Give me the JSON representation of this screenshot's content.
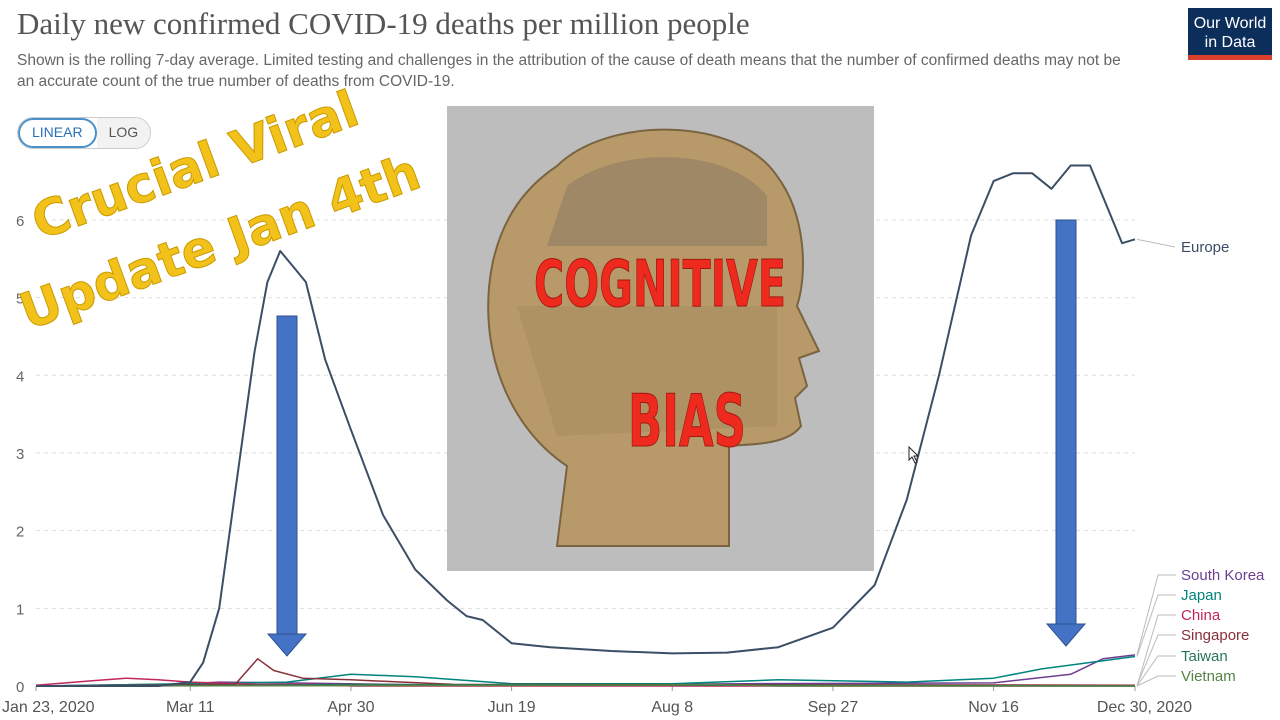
{
  "header": {
    "title": "Daily new confirmed COVID-19 deaths per million people",
    "subtitle": "Shown is the rolling 7-day average. Limited testing and challenges in the attribution of the cause of death means that the number of confirmed deaths may not be an accurate count of the true number of deaths from COVID-19.",
    "logo_line1": "Our World",
    "logo_line2": "in Data"
  },
  "scale_toggle": {
    "linear_label": "LINEAR",
    "log_label": "LOG",
    "selected": "LINEAR"
  },
  "overlay": {
    "line1": "Crucial Viral",
    "line2": "Update Jan 4th",
    "image_big_word1": "COGNITIVE",
    "image_big_word2": "BIAS",
    "arrow_color": "#4472c4"
  },
  "chart_data": {
    "type": "line",
    "title": "Daily new confirmed COVID-19 deaths per million people",
    "x_start": "Jan 23, 2020",
    "x_end": "Dec 30, 2020",
    "x_ticks": [
      "Jan 23, 2020",
      "Mar 11",
      "Apr 30",
      "Jun 19",
      "Aug 8",
      "Sep 27",
      "Nov 16",
      "Dec 30, 2020"
    ],
    "y_ticks": [
      0,
      1,
      2,
      3,
      4,
      5,
      6
    ],
    "ylim": [
      0,
      6.9
    ],
    "grid": true,
    "legend": "right-of-lines",
    "series": [
      {
        "name": "Europe",
        "color": "#3c4e66",
        "points": [
          [
            "Jan 23, 2020",
            0
          ],
          [
            "Mar 1",
            0.0
          ],
          [
            "Mar 11",
            0.05
          ],
          [
            "Mar 15",
            0.3
          ],
          [
            "Mar 20",
            1.0
          ],
          [
            "Mar 25",
            2.5
          ],
          [
            "Mar 31",
            4.3
          ],
          [
            "Apr 4",
            5.2
          ],
          [
            "Apr 8",
            5.6
          ],
          [
            "Apr 12",
            5.4
          ],
          [
            "Apr 16",
            5.2
          ],
          [
            "Apr 22",
            4.2
          ],
          [
            "Apr 30",
            3.3
          ],
          [
            "May 10",
            2.2
          ],
          [
            "May 20",
            1.5
          ],
          [
            "May 30",
            1.1
          ],
          [
            "Jun 5",
            0.9
          ],
          [
            "Jun 10",
            0.85
          ],
          [
            "Jun 19",
            0.55
          ],
          [
            "Jul 1",
            0.5
          ],
          [
            "Jul 20",
            0.45
          ],
          [
            "Aug 8",
            0.42
          ],
          [
            "Aug 25",
            0.43
          ],
          [
            "Sep 10",
            0.5
          ],
          [
            "Sep 27",
            0.75
          ],
          [
            "Oct 10",
            1.3
          ],
          [
            "Oct 20",
            2.4
          ],
          [
            "Oct 30",
            4.0
          ],
          [
            "Nov 9",
            5.8
          ],
          [
            "Nov 16",
            6.5
          ],
          [
            "Nov 22",
            6.6
          ],
          [
            "Nov 28",
            6.6
          ],
          [
            "Dec 4",
            6.4
          ],
          [
            "Dec 10",
            6.7
          ],
          [
            "Dec 16",
            6.7
          ],
          [
            "Dec 22",
            6.1
          ],
          [
            "Dec 26",
            5.7
          ],
          [
            "Dec 30, 2020",
            5.75
          ]
        ]
      },
      {
        "name": "South Korea",
        "color": "#6d3e91",
        "points": [
          [
            "Jan 23, 2020",
            0
          ],
          [
            "Mar 5",
            0.02
          ],
          [
            "Mar 20",
            0.05
          ],
          [
            "Apr 10",
            0.04
          ],
          [
            "Jun 1",
            0.01
          ],
          [
            "Sep 1",
            0.03
          ],
          [
            "Nov 16",
            0.04
          ],
          [
            "Dec 10",
            0.15
          ],
          [
            "Dec 20",
            0.35
          ],
          [
            "Dec 30, 2020",
            0.4
          ]
        ]
      },
      {
        "name": "Japan",
        "color": "#00847e",
        "points": [
          [
            "Jan 23, 2020",
            0
          ],
          [
            "Apr 10",
            0.05
          ],
          [
            "Apr 30",
            0.15
          ],
          [
            "May 20",
            0.12
          ],
          [
            "Jun 19",
            0.03
          ],
          [
            "Aug 8",
            0.03
          ],
          [
            "Sep 10",
            0.08
          ],
          [
            "Oct 20",
            0.05
          ],
          [
            "Nov 16",
            0.1
          ],
          [
            "Dec 1",
            0.22
          ],
          [
            "Dec 30, 2020",
            0.38
          ]
        ]
      },
      {
        "name": "China",
        "color": "#c1275a",
        "points": [
          [
            "Jan 23, 2020",
            0.01
          ],
          [
            "Feb 10",
            0.07
          ],
          [
            "Feb 20",
            0.1
          ],
          [
            "Mar 1",
            0.08
          ],
          [
            "Mar 11",
            0.05
          ],
          [
            "Apr 1",
            0.02
          ],
          [
            "Apr 17",
            0.02
          ],
          [
            "May 1",
            0.0
          ],
          [
            "Dec 30, 2020",
            0.0
          ]
        ]
      },
      {
        "name": "Singapore",
        "color": "#883039",
        "points": [
          [
            "Jan 23, 2020",
            0
          ],
          [
            "Mar 25",
            0.02
          ],
          [
            "Apr 1",
            0.35
          ],
          [
            "Apr 6",
            0.2
          ],
          [
            "Apr 15",
            0.1
          ],
          [
            "Apr 30",
            0.08
          ],
          [
            "Jun 1",
            0.02
          ],
          [
            "Dec 30, 2020",
            0.01
          ]
        ]
      },
      {
        "name": "Taiwan",
        "color": "#28735a",
        "points": [
          [
            "Jan 23, 2020",
            0
          ],
          [
            "Apr 1",
            0.01
          ],
          [
            "May 1",
            0.02
          ],
          [
            "Dec 30, 2020",
            0.0
          ]
        ]
      },
      {
        "name": "Vietnam",
        "color": "#578145",
        "points": [
          [
            "Jan 23, 2020",
            0
          ],
          [
            "Aug 1",
            0.01
          ],
          [
            "Aug 20",
            0.02
          ],
          [
            "Sep 10",
            0.0
          ],
          [
            "Dec 30, 2020",
            0.0
          ]
        ]
      }
    ]
  }
}
